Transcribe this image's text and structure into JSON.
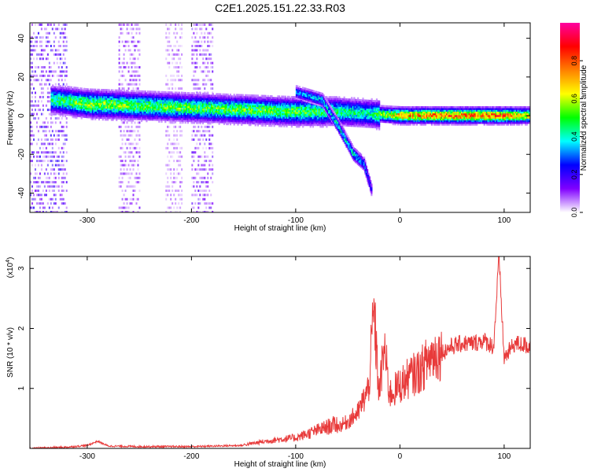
{
  "title": "C2E1.2025.151.22.33.R03",
  "chart_data": [
    {
      "type": "heatmap",
      "xlabel": "Height of straight line (km)",
      "ylabel": "Frequency (Hz)",
      "xlim": [
        -355,
        125
      ],
      "ylim": [
        -50,
        48
      ],
      "x_ticks": [
        -300,
        -200,
        -100,
        0,
        100
      ],
      "y_ticks": [
        40,
        20,
        0,
        -20,
        -40
      ],
      "colorbar": {
        "label": "Normalized spectral amplitude",
        "range": [
          0,
          1
        ],
        "ticks": [
          0.0,
          0.2,
          0.4,
          0.6,
          0.8
        ],
        "tick_labels": [
          "0.0",
          "0.2",
          "0.4",
          "0.6",
          "0.8"
        ],
        "colors": [
          "#ffffff",
          "#8000ff",
          "#0000ff",
          "#00ffff",
          "#00ff00",
          "#ffff00",
          "#ff8000",
          "#ff0000",
          "#ff00a0"
        ]
      },
      "main_band": [
        {
          "x": -330,
          "f": 8,
          "amp": 0.45
        },
        {
          "x": -300,
          "f": 6,
          "amp": 0.55
        },
        {
          "x": -250,
          "f": 5,
          "amp": 0.5
        },
        {
          "x": -200,
          "f": 4,
          "amp": 0.5
        },
        {
          "x": -150,
          "f": 3,
          "amp": 0.5
        },
        {
          "x": -100,
          "f": 2,
          "amp": 0.5
        },
        {
          "x": -60,
          "f": 2,
          "amp": 0.45
        },
        {
          "x": -30,
          "f": 1,
          "amp": 0.4
        },
        {
          "x": 0,
          "f": 0,
          "amp": 0.7
        },
        {
          "x": 50,
          "f": 0,
          "amp": 0.75
        },
        {
          "x": 100,
          "f": 0,
          "amp": 0.75
        },
        {
          "x": 125,
          "f": 0,
          "amp": 0.6
        }
      ],
      "secondary_branch": [
        {
          "x": -100,
          "f": 12,
          "amp": 0.3
        },
        {
          "x": -75,
          "f": 8,
          "amp": 0.35
        },
        {
          "x": -60,
          "f": -5,
          "amp": 0.4
        },
        {
          "x": -45,
          "f": -20,
          "amp": 0.4
        },
        {
          "x": -35,
          "f": -25,
          "amp": 0.3
        },
        {
          "x": -28,
          "f": -38,
          "amp": 0.2
        }
      ],
      "noise_regions": [
        {
          "x_start": -355,
          "x_end": -320,
          "amp": 0.45
        },
        {
          "x_start": -270,
          "x_end": -250,
          "amp": 0.3
        },
        {
          "x_start": -225,
          "x_end": -210,
          "amp": 0.2
        },
        {
          "x_start": -200,
          "x_end": -180,
          "amp": 0.35
        }
      ]
    },
    {
      "type": "line",
      "xlabel": "Height of straight line (km)",
      "ylabel": "SNR (10 * v/v)",
      "y_multiplier": "(x10",
      "y_multiplier_exp": "4",
      "y_multiplier_close": ")",
      "xlim": [
        -355,
        125
      ],
      "ylim": [
        0,
        3.2
      ],
      "x_ticks": [
        -300,
        -200,
        -100,
        0,
        100
      ],
      "y_ticks": [
        1,
        2,
        3
      ],
      "color": "#e83a3a",
      "series": [
        {
          "x": [
            -355,
            -320,
            -300,
            -290,
            -280,
            -250,
            -200,
            -150,
            -120,
            -100,
            -80,
            -60,
            -50,
            -40,
            -30,
            -25,
            -20,
            -15,
            -10,
            0,
            10,
            20,
            30,
            40,
            50,
            60,
            70,
            80,
            90,
            95,
            100,
            110,
            120,
            125
          ],
          "y": [
            0.0,
            0.02,
            0.05,
            0.12,
            0.04,
            0.03,
            0.03,
            0.05,
            0.12,
            0.15,
            0.25,
            0.35,
            0.45,
            0.6,
            1.0,
            2.3,
            0.9,
            1.7,
            0.9,
            1.05,
            1.2,
            1.3,
            1.55,
            1.6,
            1.7,
            1.75,
            1.75,
            1.8,
            1.7,
            3.2,
            1.5,
            1.75,
            1.72,
            1.7
          ]
        }
      ]
    }
  ]
}
